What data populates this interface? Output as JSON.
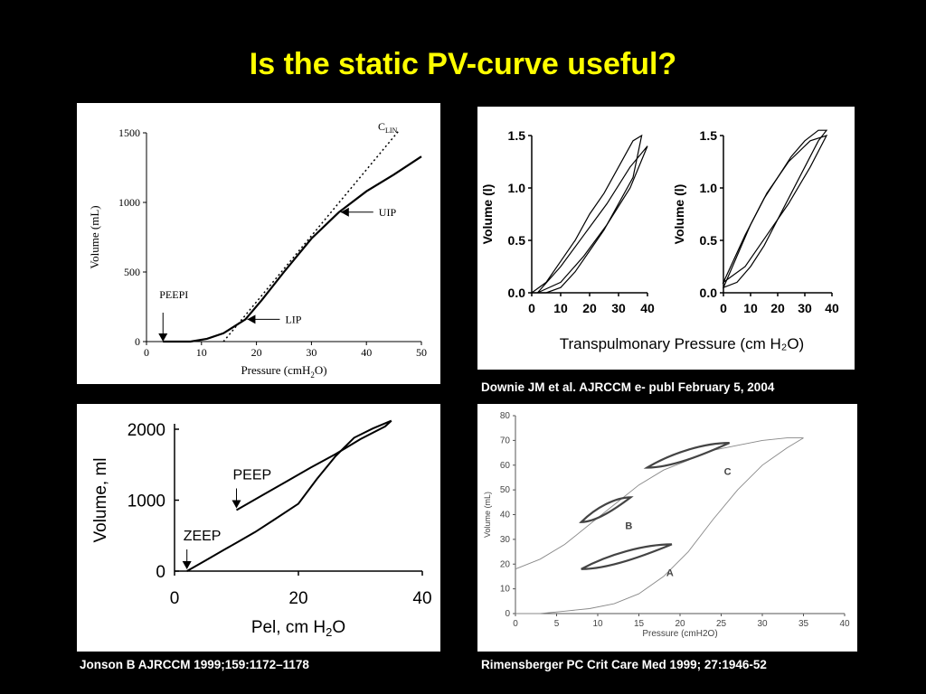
{
  "slide": {
    "title": "Is the static PV-curve useful?"
  },
  "captions": {
    "top_right": "Downie JM et al.  AJRCCM  e- publ February 5, 2004",
    "bottom_left": "Jonson B   AJRCCM 1999;159:1172–1178",
    "bottom_right": "Rimensberger PC    Crit Care Med 1999; 27:1946-52"
  },
  "colors": {
    "background": "#000000",
    "title": "#ffff00",
    "caption": "#ffffff",
    "ink": "#000000"
  },
  "chart_data": [
    {
      "id": "pv-static",
      "type": "line",
      "xlabel_parts": [
        "Pressure (cmH",
        "2",
        "O)"
      ],
      "ylabel": "Volume (mL)",
      "xlim": [
        0,
        50
      ],
      "ylim": [
        0,
        1500
      ],
      "xticks": [
        0,
        10,
        20,
        30,
        40,
        50
      ],
      "yticks": [
        0,
        500,
        1000,
        1500
      ],
      "series": [
        {
          "style": "solid",
          "x": [
            3,
            8,
            11,
            14,
            16,
            18,
            21,
            25,
            30,
            35,
            40,
            45,
            50
          ],
          "y": [
            0,
            0,
            20,
            60,
            110,
            160,
            300,
            500,
            740,
            930,
            1080,
            1200,
            1330
          ]
        },
        {
          "style": "dotted",
          "x": [
            14,
            46
          ],
          "y": [
            0,
            1520
          ]
        }
      ],
      "annotations": [
        {
          "label": "PEEPI",
          "x": 3,
          "y": 0,
          "arrow": "down"
        },
        {
          "label": "LIP",
          "x": 18,
          "y": 160,
          "arrow": "left"
        },
        {
          "label": "UIP",
          "x": 35,
          "y": 930,
          "arrow": "left"
        }
      ],
      "line_label": {
        "main": "C",
        "sub": "LIN"
      }
    },
    {
      "id": "downie-loops",
      "type": "line",
      "xlabel": "Transpulmonary Pressure (cm H₂O)",
      "ylabel": "Volume (l)",
      "subplots": [
        {
          "xlim": [
            0,
            40
          ],
          "ylim": [
            0,
            1.5
          ],
          "xticks": [
            0,
            10,
            20,
            30,
            40
          ],
          "yticks": [
            "0.0",
            "0.5",
            "1.0",
            "1.5"
          ],
          "loops": [
            {
              "x": [
                0,
                5,
                10,
                15,
                20,
                25,
                30,
                35,
                38
              ],
              "up": [
                0,
                0.1,
                0.3,
                0.5,
                0.75,
                0.95,
                1.2,
                1.45,
                1.5
              ],
              "down": [
                0,
                0.0,
                0.05,
                0.2,
                0.4,
                0.6,
                0.85,
                1.1,
                1.5
              ]
            },
            {
              "x": [
                2,
                10,
                18,
                26,
                34,
                40
              ],
              "up": [
                0,
                0.25,
                0.55,
                0.85,
                1.2,
                1.4
              ],
              "down": [
                0,
                0.1,
                0.35,
                0.65,
                1.0,
                1.4
              ]
            }
          ]
        },
        {
          "xlim": [
            0,
            40
          ],
          "ylim": [
            0,
            1.5
          ],
          "xticks": [
            0,
            10,
            20,
            30,
            40
          ],
          "yticks": [
            "0.0",
            "0.5",
            "1.0",
            "1.5"
          ],
          "loops": [
            {
              "x": [
                0,
                5,
                10,
                15,
                20,
                25,
                30,
                35,
                38
              ],
              "up": [
                0.05,
                0.35,
                0.65,
                0.9,
                1.1,
                1.3,
                1.45,
                1.55,
                1.55
              ],
              "down": [
                0.05,
                0.1,
                0.25,
                0.45,
                0.7,
                0.95,
                1.2,
                1.45,
                1.55
              ]
            },
            {
              "x": [
                0,
                8,
                16,
                24,
                32,
                38
              ],
              "up": [
                0.1,
                0.55,
                0.95,
                1.25,
                1.45,
                1.5
              ],
              "down": [
                0.1,
                0.25,
                0.55,
                0.85,
                1.2,
                1.5
              ]
            }
          ]
        }
      ]
    },
    {
      "id": "jonson",
      "type": "line",
      "xlabel_parts": [
        "Pel, cm H",
        "2",
        "O"
      ],
      "ylabel": "Volume, ml",
      "xlim": [
        0,
        40
      ],
      "ylim": [
        0,
        2000
      ],
      "xticks": [
        0,
        20,
        40
      ],
      "yticks": [
        0,
        1000,
        2000
      ],
      "series": [
        {
          "name": "ZEEP",
          "x": [
            2,
            5,
            8,
            10,
            13,
            16,
            20,
            23,
            26,
            29,
            32,
            35
          ],
          "y": [
            0,
            150,
            300,
            400,
            550,
            720,
            950,
            1300,
            1620,
            1880,
            2010,
            2120
          ]
        },
        {
          "name": "PEEP",
          "x": [
            10,
            14,
            18,
            22,
            26,
            30,
            34,
            35
          ],
          "y": [
            860,
            1060,
            1260,
            1460,
            1650,
            1860,
            2040,
            2120
          ]
        }
      ],
      "annotations": [
        {
          "label": "PEEP",
          "x": 10,
          "y": 860,
          "arrow": "down"
        },
        {
          "label": "ZEEP",
          "x": 2,
          "y": 0,
          "arrow": "down"
        }
      ]
    },
    {
      "id": "rimensberger",
      "type": "line",
      "xlabel": "Pressure (cmH2O)",
      "ylabel": "Volume (mL)",
      "xlim": [
        0,
        40
      ],
      "ylim": [
        0,
        80
      ],
      "xticks": [
        0,
        5,
        10,
        15,
        20,
        25,
        30,
        35,
        40
      ],
      "yticks": [
        0,
        10,
        20,
        30,
        40,
        50,
        60,
        70,
        80
      ],
      "envelope": {
        "x": [
          0,
          3,
          6,
          9,
          12,
          15,
          18,
          21,
          24,
          27,
          30,
          33,
          35
        ],
        "inflation": [
          18,
          22,
          28,
          36,
          44,
          52,
          58,
          62,
          66,
          68,
          70,
          71,
          71
        ],
        "deflation": [
          0,
          0,
          1,
          2,
          4,
          8,
          15,
          25,
          38,
          50,
          60,
          67,
          71
        ]
      },
      "loops": [
        {
          "label": "A",
          "x": [
            8,
            19
          ],
          "y": [
            18,
            28
          ]
        },
        {
          "label": "B",
          "x": [
            8,
            14
          ],
          "y": [
            37,
            47
          ]
        },
        {
          "label": "C",
          "x": [
            16,
            26
          ],
          "y": [
            59,
            69
          ]
        }
      ]
    }
  ]
}
